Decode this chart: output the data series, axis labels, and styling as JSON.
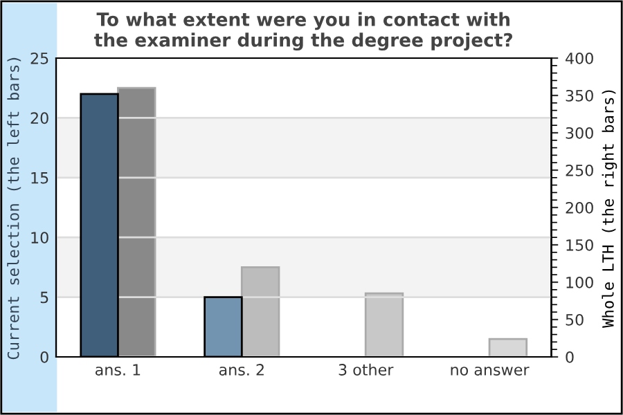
{
  "chart_data": {
    "type": "bar",
    "title": "To what extent were you in contact with\nthe examiner during the degree project?",
    "ylabel": "Current selection (the left bars)",
    "y2label": "Whole LTH (the right bars)",
    "categories": [
      "ans. 1",
      "ans. 2",
      "3 other",
      "no answer"
    ],
    "series": [
      {
        "colors": [
          "#3f5f7a",
          "#7394b0",
          "#7394b0",
          "#7394b0"
        ],
        "values": [
          22,
          5,
          null,
          null
        ]
      },
      {
        "axis": "y2",
        "colors": [
          "#898989",
          "#bcbcbc",
          "#c8c8c8",
          "#d8d8d8"
        ],
        "values": [
          360,
          120,
          85,
          24
        ]
      }
    ],
    "ylim": [
      0,
      25
    ],
    "yticks": [
      0,
      5,
      10,
      15,
      20,
      25
    ],
    "y2lim": [
      0,
      400
    ],
    "y2ticks": [
      0,
      50,
      100,
      150,
      200,
      250,
      300,
      350,
      400
    ],
    "grid": "y",
    "bands": [
      {
        "axis": "y",
        "from": 5,
        "to": 10,
        "color": "#f3f3f3"
      },
      {
        "axis": "y",
        "from": 15,
        "to": 20,
        "color": "#f3f3f3"
      }
    ]
  }
}
